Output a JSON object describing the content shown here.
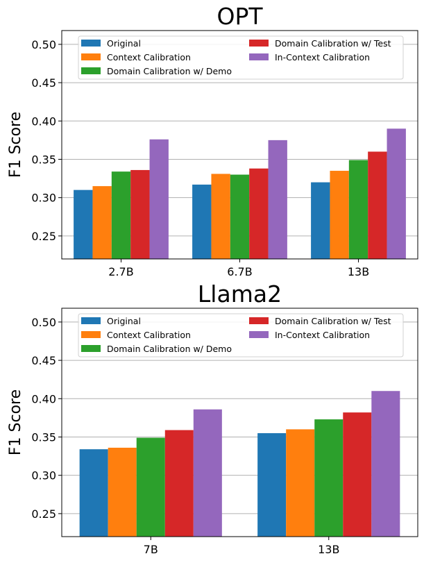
{
  "chart_data": [
    {
      "type": "bar",
      "title": "OPT",
      "xlabel": "",
      "ylabel": "F1 Score",
      "ylim": [
        0.22,
        0.518
      ],
      "yticks": [
        "0.25",
        "0.30",
        "0.35",
        "0.40",
        "0.45",
        "0.50"
      ],
      "grid": "horizontal",
      "legend_position": "top",
      "categories": [
        "2.7B",
        "6.7B",
        "13B"
      ],
      "series": [
        {
          "name": "Original",
          "color": "#1f77b4",
          "values": [
            0.31,
            0.317,
            0.32
          ]
        },
        {
          "name": "Context Calibration",
          "color": "#ff7f0e",
          "values": [
            0.315,
            0.331,
            0.335
          ]
        },
        {
          "name": "Domain Calibration w/ Demo",
          "color": "#2ca02c",
          "values": [
            0.334,
            0.33,
            0.349
          ]
        },
        {
          "name": "Domain Calibration w/ Test",
          "color": "#d62728",
          "values": [
            0.336,
            0.338,
            0.36
          ]
        },
        {
          "name": "In-Context Calibration",
          "color": "#9467bd",
          "values": [
            0.376,
            0.375,
            0.39
          ]
        }
      ]
    },
    {
      "type": "bar",
      "title": "Llama2",
      "xlabel": "",
      "ylabel": "F1 Score",
      "ylim": [
        0.22,
        0.518
      ],
      "yticks": [
        "0.25",
        "0.30",
        "0.35",
        "0.40",
        "0.45",
        "0.50"
      ],
      "grid": "horizontal",
      "legend_position": "top",
      "categories": [
        "7B",
        "13B"
      ],
      "series": [
        {
          "name": "Original",
          "color": "#1f77b4",
          "values": [
            0.334,
            0.355
          ]
        },
        {
          "name": "Context Calibration",
          "color": "#ff7f0e",
          "values": [
            0.336,
            0.36
          ]
        },
        {
          "name": "Domain Calibration w/ Demo",
          "color": "#2ca02c",
          "values": [
            0.349,
            0.373
          ]
        },
        {
          "name": "Domain Calibration w/ Test",
          "color": "#d62728",
          "values": [
            0.359,
            0.382
          ]
        },
        {
          "name": "In-Context Calibration",
          "color": "#9467bd",
          "values": [
            0.386,
            0.41
          ]
        }
      ]
    }
  ]
}
